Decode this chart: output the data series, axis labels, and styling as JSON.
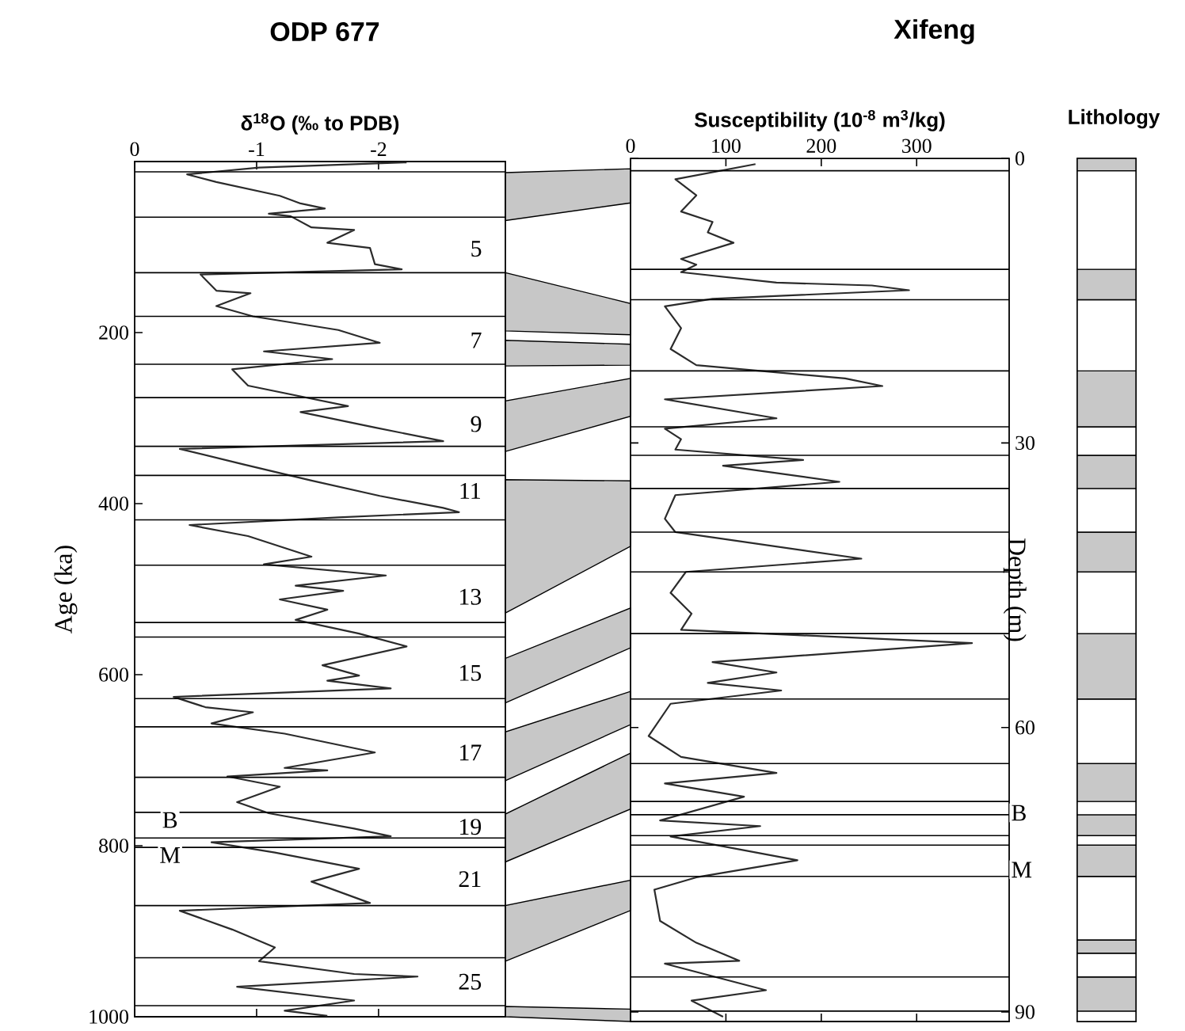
{
  "chart_data": [
    {
      "type": "line",
      "orientation": "horizontal",
      "title": "ODP 677",
      "xlabel": "δ$^{18}$O (‰ to PDB)",
      "ylabel": "Age (ka)",
      "x": [
        1,
        7,
        15,
        24,
        40,
        49,
        55,
        61,
        64,
        77,
        80,
        95,
        101,
        120,
        126,
        132,
        151,
        154,
        169,
        181,
        197,
        212,
        222,
        231,
        243,
        262,
        286,
        293,
        311,
        327,
        336,
        354,
        373,
        391,
        405,
        410,
        416,
        425,
        438,
        462,
        471,
        484,
        496,
        502,
        512,
        524,
        536,
        552,
        567,
        589,
        601,
        607,
        616,
        626,
        638,
        644,
        657,
        669,
        691,
        709,
        712,
        719,
        731,
        749,
        762,
        780,
        789,
        796,
        808,
        827,
        842,
        867,
        876,
        898,
        919,
        935,
        950,
        953,
        965,
        981,
        993,
        999
      ],
      "series": [
        {
          "color": "#2b2b2b",
          "values": [
            -2.23,
            -1.02,
            -0.43,
            -0.67,
            -1.19,
            -1.36,
            -1.56,
            -1.1,
            -1.28,
            -1.45,
            -1.8,
            -1.58,
            -1.93,
            -1.97,
            -2.19,
            -0.54,
            -0.67,
            -0.95,
            -0.67,
            -0.97,
            -1.67,
            -2.01,
            -1.06,
            -1.62,
            -0.8,
            -0.93,
            -1.75,
            -1.36,
            -1.97,
            -2.53,
            -0.37,
            -0.89,
            -1.45,
            -2.01,
            -2.53,
            -2.66,
            -1.67,
            -0.45,
            -0.93,
            -1.45,
            -1.06,
            -2.06,
            -1.32,
            -1.71,
            -1.19,
            -1.58,
            -1.32,
            -1.84,
            -2.23,
            -1.54,
            -1.84,
            -1.58,
            -2.1,
            -0.32,
            -0.58,
            -0.97,
            -0.63,
            -1.23,
            -1.97,
            -1.23,
            -1.58,
            -0.76,
            -1.19,
            -0.84,
            -1.1,
            -1.8,
            -2.1,
            -0.63,
            -1.15,
            -1.84,
            -1.45,
            -1.93,
            -0.37,
            -0.8,
            -1.15,
            -1.02,
            -1.8,
            -2.32,
            -0.84,
            -1.8,
            -1.23,
            -1.58
          ]
        }
      ],
      "xlim": [
        0,
        -3.04
      ],
      "xticks": [
        0,
        -1,
        -2
      ],
      "ylim": [
        1000,
        0
      ],
      "yticks": [
        200,
        400,
        600,
        800,
        1000
      ],
      "ref_lines": [
        {
          "axis": "y",
          "value": 12
        },
        {
          "axis": "y",
          "value": 65
        },
        {
          "axis": "y",
          "value": 130
        },
        {
          "axis": "y",
          "value": 181
        },
        {
          "axis": "y",
          "value": 237
        },
        {
          "axis": "y",
          "value": 276
        },
        {
          "axis": "y",
          "value": 333
        },
        {
          "axis": "y",
          "value": 367
        },
        {
          "axis": "y",
          "value": 419
        },
        {
          "axis": "y",
          "value": 472
        },
        {
          "axis": "y",
          "value": 628
        },
        {
          "axis": "y",
          "value": 661
        },
        {
          "axis": "y",
          "value": 720
        },
        {
          "axis": "y",
          "value": 761
        },
        {
          "axis": "y",
          "value": 791
        },
        {
          "axis": "y",
          "value": 802
        },
        {
          "axis": "y",
          "value": 870
        },
        {
          "axis": "y",
          "value": 931
        },
        {
          "axis": "y",
          "value": 987
        },
        {
          "axis": "y",
          "value": 539
        },
        {
          "axis": "y",
          "value": 556
        }
      ],
      "annotations": [
        {
          "text": "5",
          "x": -2.8,
          "y": 102
        },
        {
          "text": "7",
          "x": -2.8,
          "y": 209
        },
        {
          "text": "9",
          "x": -2.8,
          "y": 307
        },
        {
          "text": "11",
          "x": -2.75,
          "y": 385
        },
        {
          "text": "13",
          "x": -2.75,
          "y": 509
        },
        {
          "text": "15",
          "x": -2.75,
          "y": 598
        },
        {
          "text": "17",
          "x": -2.75,
          "y": 691
        },
        {
          "text": "19",
          "x": -2.75,
          "y": 778
        },
        {
          "text": "21",
          "x": -2.75,
          "y": 839
        },
        {
          "text": "25",
          "x": -2.75,
          "y": 959
        },
        {
          "text": "B",
          "x": -0.29,
          "y": 770
        },
        {
          "text": "M",
          "x": -0.29,
          "y": 811
        }
      ]
    },
    {
      "type": "line",
      "orientation": "horizontal",
      "title": "Xifeng",
      "xlabel": "Susceptibility (10$^{-8}$ m$^{3}$/kg)",
      "ylabel": "Depth (m)",
      "x": [
        0.6,
        2.2,
        3.9,
        5.6,
        6.7,
        7.8,
        8.9,
        10.6,
        11.2,
        12.0,
        13.1,
        13.4,
        13.9,
        14.8,
        15.6,
        17.9,
        20.1,
        21.8,
        23.2,
        24.0,
        25.4,
        27.4,
        28.5,
        29.6,
        30.7,
        31.8,
        32.4,
        34.1,
        35.5,
        38.0,
        39.4,
        42.2,
        43.6,
        45.8,
        48.0,
        49.7,
        51.1,
        53.1,
        54.2,
        55.3,
        56.1,
        57.5,
        60.9,
        63.1,
        64.8,
        65.9,
        67.3,
        69.8,
        70.4,
        71.5,
        74.0,
        75.8,
        77.1,
        80.4,
        82.7,
        84.6,
        84.9,
        87.7,
        88.8,
        90.5
      ],
      "series": [
        {
          "color": "#2b2b2b",
          "values": [
            131,
            47,
            69,
            53,
            86,
            81,
            108,
            53,
            69,
            53,
            153,
            253,
            292,
            86,
            36,
            53,
            42,
            69,
            225,
            264,
            36,
            153,
            36,
            53,
            47,
            181,
            97,
            219,
            47,
            36,
            47,
            242,
            58,
            42,
            64,
            53,
            358,
            86,
            153,
            81,
            158,
            42,
            19,
            53,
            153,
            36,
            119,
            31,
            136,
            42,
            175,
            69,
            25,
            31,
            69,
            114,
            36,
            142,
            64,
            97
          ]
        }
      ],
      "xlim": [
        0,
        397
      ],
      "xticks": [
        0,
        100,
        200,
        300
      ],
      "ylim": [
        91,
        0
      ],
      "yticks": [
        0,
        30,
        60,
        90
      ],
      "ref_lines": [
        {
          "axis": "y",
          "value": 1.3
        },
        {
          "axis": "y",
          "value": 11.7
        },
        {
          "axis": "y",
          "value": 14.9
        },
        {
          "axis": "y",
          "value": 22.4
        },
        {
          "axis": "y",
          "value": 28.3
        },
        {
          "axis": "y",
          "value": 31.3
        },
        {
          "axis": "y",
          "value": 34.8
        },
        {
          "axis": "y",
          "value": 39.4
        },
        {
          "axis": "y",
          "value": 43.6
        },
        {
          "axis": "y",
          "value": 50.1
        },
        {
          "axis": "y",
          "value": 57.0
        },
        {
          "axis": "y",
          "value": 63.8
        },
        {
          "axis": "y",
          "value": 67.8
        },
        {
          "axis": "y",
          "value": 69.2
        },
        {
          "axis": "y",
          "value": 71.4
        },
        {
          "axis": "y",
          "value": 72.4
        },
        {
          "axis": "y",
          "value": 75.7
        },
        {
          "axis": "y",
          "value": 86.3
        },
        {
          "axis": "y",
          "value": 89.9
        }
      ],
      "annotations": [
        {
          "text": "B",
          "y": 69.0
        },
        {
          "text": "M",
          "y": 75.0
        }
      ]
    },
    {
      "type": "bar",
      "title": "Lithology",
      "categories": [
        null
      ],
      "stacked": true,
      "ylim": [
        91,
        0
      ],
      "series": [
        {
          "color": "#c8c8c8",
          "values": [
            1.3
          ]
        },
        {
          "color": "#ffffff",
          "values": [
            10.4
          ]
        },
        {
          "color": "#c8c8c8",
          "values": [
            3.2
          ]
        },
        {
          "color": "#ffffff",
          "values": [
            7.5
          ]
        },
        {
          "color": "#c8c8c8",
          "values": [
            5.9
          ]
        },
        {
          "color": "#ffffff",
          "values": [
            3.0
          ]
        },
        {
          "color": "#c8c8c8",
          "values": [
            3.5
          ]
        },
        {
          "color": "#ffffff",
          "values": [
            4.6
          ]
        },
        {
          "color": "#c8c8c8",
          "values": [
            4.2
          ]
        },
        {
          "color": "#ffffff",
          "values": [
            6.5
          ]
        },
        {
          "color": "#c8c8c8",
          "values": [
            6.9
          ]
        },
        {
          "color": "#ffffff",
          "values": [
            6.8
          ]
        },
        {
          "color": "#c8c8c8",
          "values": [
            4.0
          ]
        },
        {
          "color": "#ffffff",
          "values": [
            1.4
          ]
        },
        {
          "color": "#c8c8c8",
          "values": [
            2.2
          ]
        },
        {
          "color": "#ffffff",
          "values": [
            1.0
          ]
        },
        {
          "color": "#c8c8c8",
          "values": [
            3.3
          ]
        },
        {
          "color": "#ffffff",
          "values": [
            6.7
          ]
        },
        {
          "color": "#c8c8c8",
          "values": [
            1.4
          ]
        },
        {
          "color": "#ffffff",
          "values": [
            2.5
          ]
        },
        {
          "color": "#c8c8c8",
          "values": [
            3.6
          ]
        },
        {
          "color": "#ffffff",
          "values": [
            1.1
          ]
        }
      ]
    }
  ]
}
